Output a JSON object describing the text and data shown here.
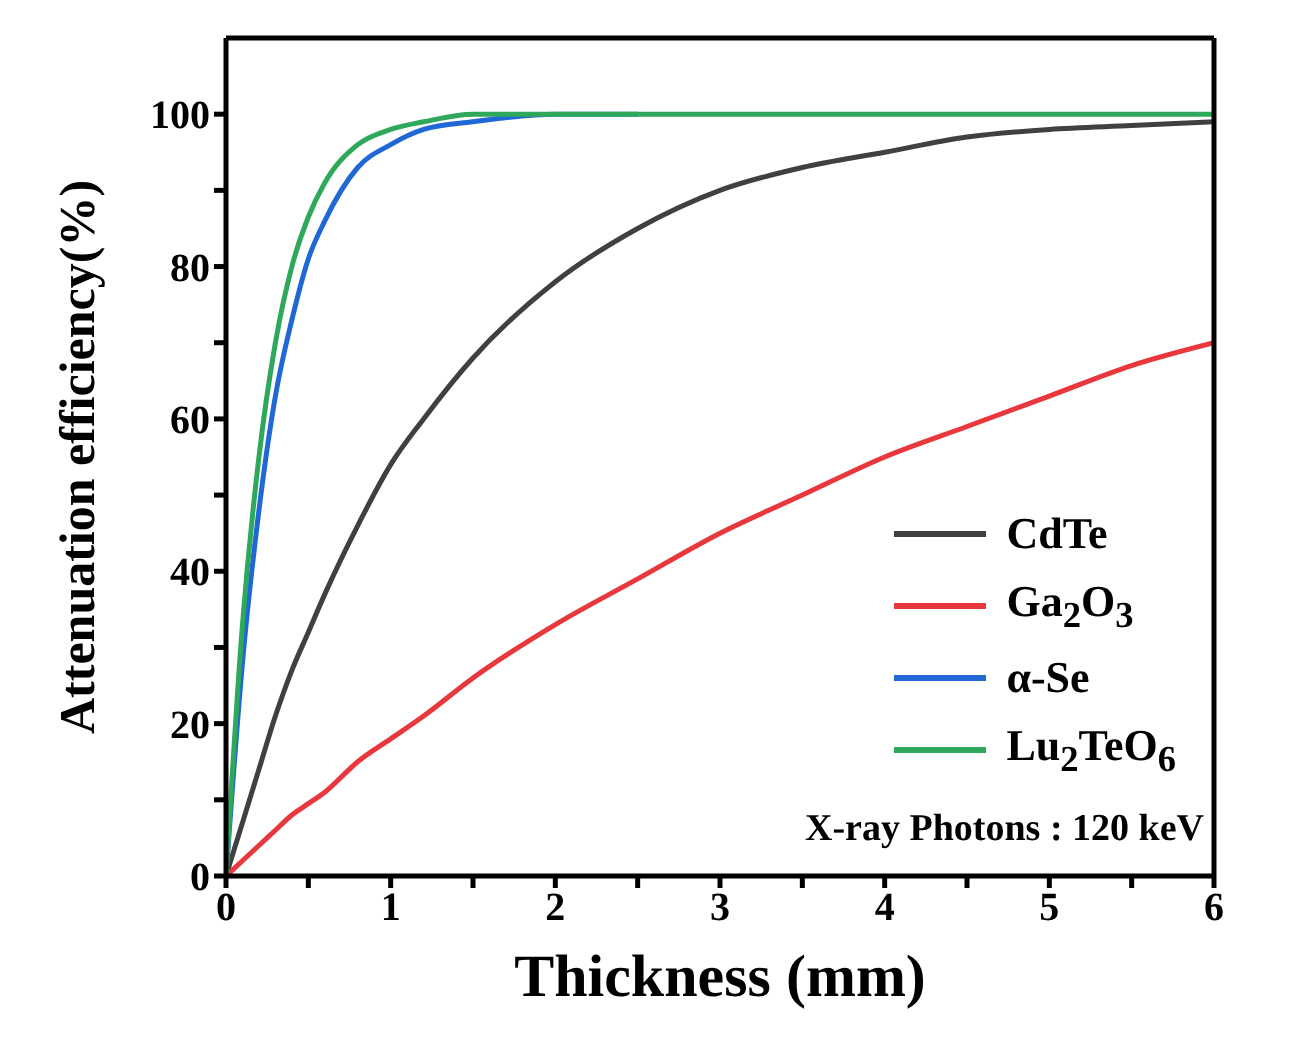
{
  "chart_data": {
    "type": "line",
    "xlabel": "Thickness (mm)",
    "ylabel": "Attenuation efficiency(%)",
    "x": [
      0,
      0.1,
      0.2,
      0.3,
      0.4,
      0.5,
      0.6,
      0.8,
      1,
      1.2,
      1.5,
      2,
      2.5,
      3,
      3.5,
      4,
      4.5,
      5,
      5.5,
      6
    ],
    "series": [
      {
        "name": "CdTe",
        "color": "#404040",
        "values": [
          0,
          7,
          14,
          21,
          27,
          32,
          37,
          46,
          54,
          60,
          68,
          78,
          85,
          90,
          93,
          95,
          97,
          98,
          98.5,
          99
        ]
      },
      {
        "name": "Ga$_{2}$O$_{3}$",
        "color": "#e8383d",
        "values": [
          0,
          2,
          4,
          6,
          8,
          9.5,
          11,
          15,
          18,
          21,
          26,
          33,
          39,
          45,
          50,
          55,
          59,
          63,
          67,
          70
        ]
      },
      {
        "name": "α-Se",
        "color": "#1f68d6",
        "values": [
          0,
          28,
          48,
          63,
          73,
          81,
          86,
          93,
          96,
          98,
          99,
          100,
          100,
          null,
          null,
          null,
          null,
          null,
          null,
          null
        ]
      },
      {
        "name": "Lu$_{2}$TeO$_{6}$",
        "color": "#2ea85a",
        "values": [
          0,
          33,
          55,
          70,
          80,
          86.5,
          91,
          96,
          98,
          99,
          100,
          100,
          100,
          100,
          100,
          100,
          100,
          100,
          100,
          100
        ]
      }
    ],
    "xlim": [
      0,
      6
    ],
    "ylim": [
      0,
      110
    ],
    "xticks": [
      0,
      {
        "value": 0.5,
        "label": null
      },
      1,
      {
        "value": 1.5,
        "label": null
      },
      2,
      {
        "value": 2.5,
        "label": null
      },
      3,
      {
        "value": 3.5,
        "label": null
      },
      4,
      {
        "value": 4.5,
        "label": null
      },
      5,
      {
        "value": 5.5,
        "label": null
      },
      6
    ],
    "yticks": [
      0,
      {
        "value": 10,
        "label": null
      },
      20,
      {
        "value": 30,
        "label": null
      },
      40,
      {
        "value": 50,
        "label": null
      },
      60,
      {
        "value": 70,
        "label": null
      },
      80,
      {
        "value": 90,
        "label": null
      },
      100
    ],
    "annotations": [
      "X-ray Photons : 120 keV"
    ],
    "legend": "bottom right",
    "grid": false,
    "marker": "none",
    "line_style": "solid"
  }
}
